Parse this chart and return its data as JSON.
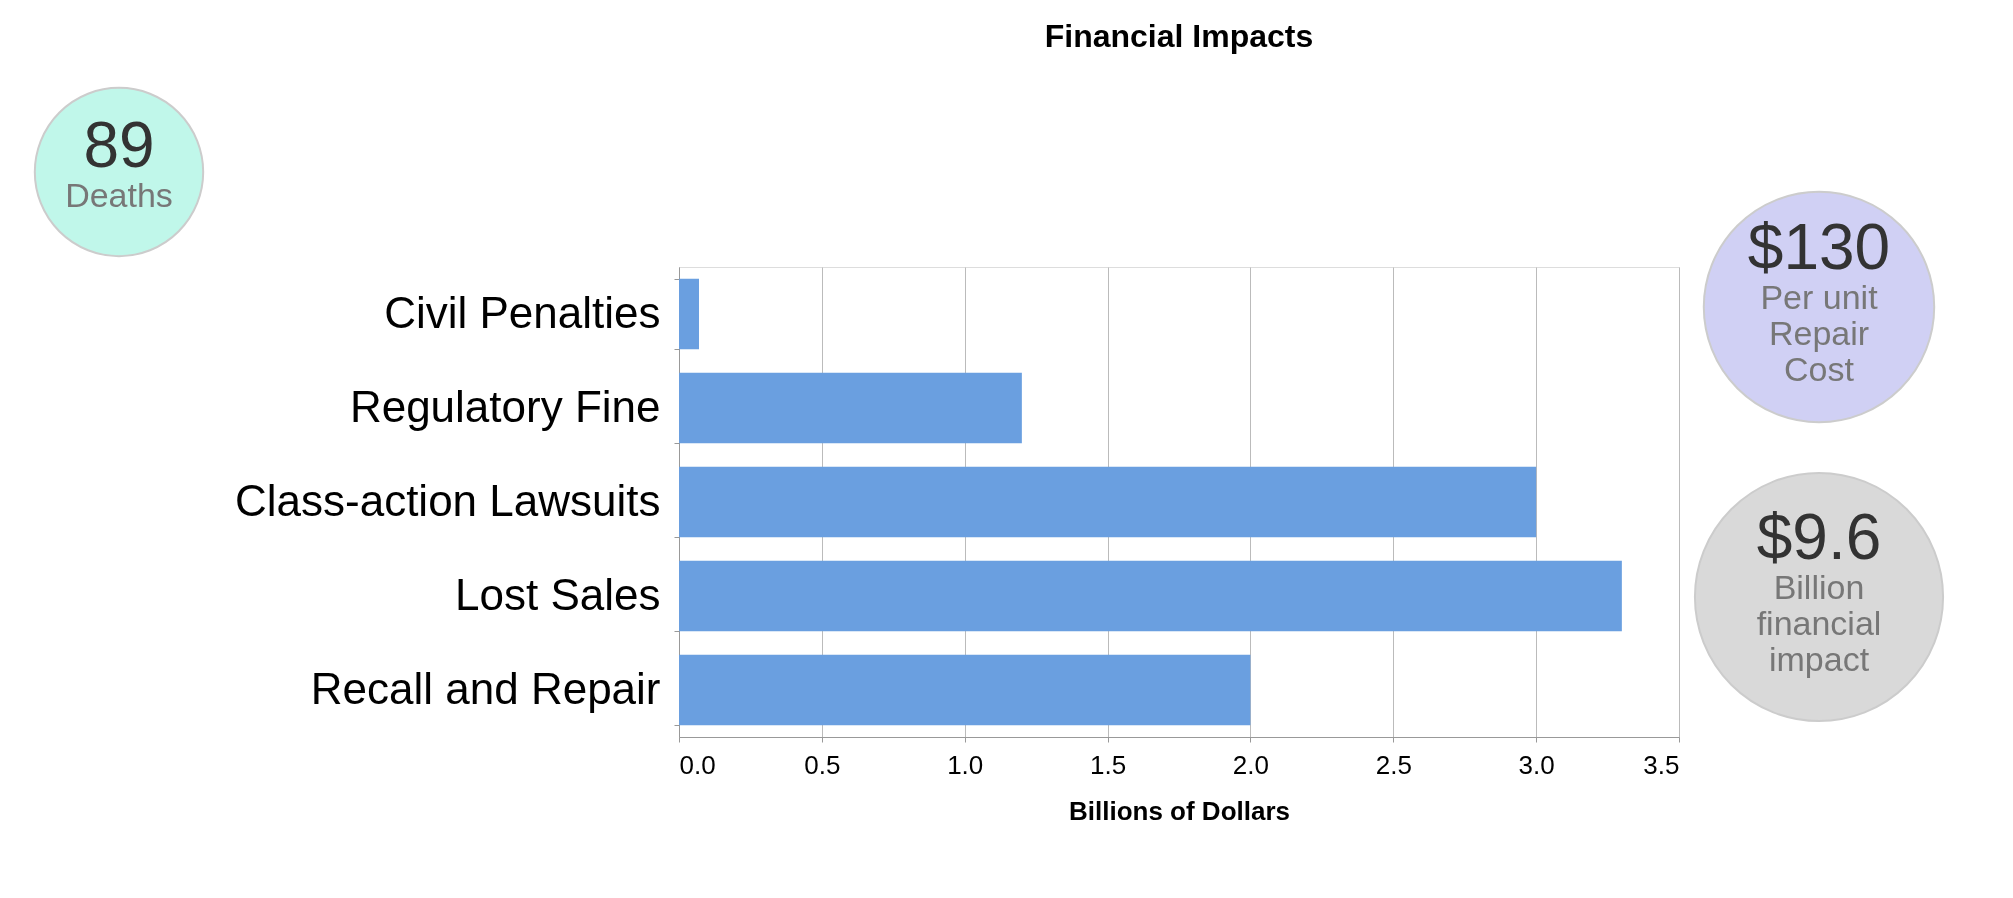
{
  "chart_data": {
    "type": "bar",
    "orientation": "horizontal",
    "title": "Financial Impacts",
    "xlabel": "Billions of Dollars",
    "categories": [
      "Civil Penalties",
      "Regulatory Fine",
      "Class-action Lawsuits",
      "Lost Sales",
      "Recall and Repair"
    ],
    "values": [
      0.07,
      1.2,
      3.0,
      3.3,
      2.0
    ],
    "color": "#6a9fe0",
    "xlim": [
      0,
      3.5
    ],
    "xticks": [
      {
        "value": 0,
        "label": "0.0"
      },
      {
        "value": 0.5,
        "label": "0.5"
      },
      {
        "value": 1,
        "label": "1.0"
      },
      {
        "value": 1.5,
        "label": "1.5"
      },
      {
        "value": 2,
        "label": "2.0"
      },
      {
        "value": 2.5,
        "label": "2.5"
      },
      {
        "value": 3,
        "label": "3.0"
      },
      {
        "value": 3.5,
        "label": "3.5"
      }
    ],
    "grid": "x",
    "annotations": [
      "89",
      "Deaths",
      "$130",
      "Per unit Repair Cost",
      "$9.6",
      "Billion financial impact"
    ]
  }
}
